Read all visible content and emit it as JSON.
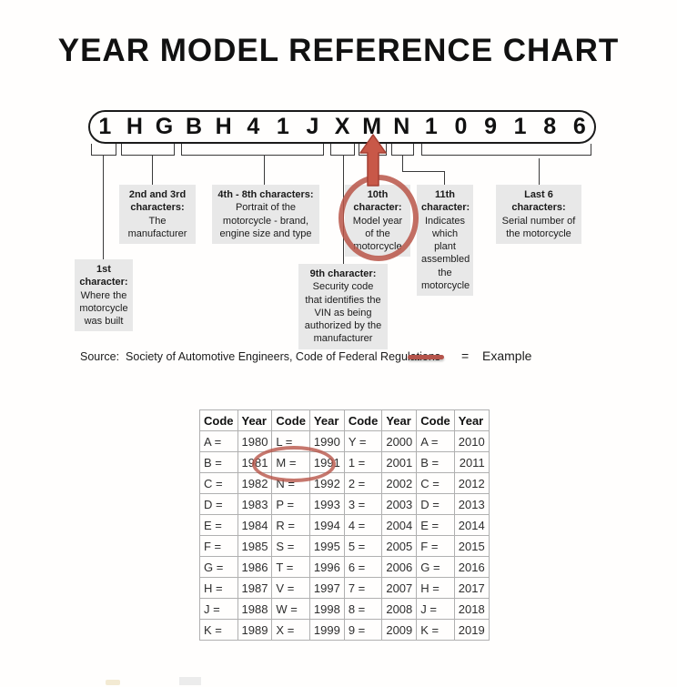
{
  "title": "YEAR MODEL REFERENCE CHART",
  "vin": {
    "characters": [
      "1",
      "H",
      "G",
      "B",
      "H",
      "4",
      "1",
      "J",
      "X",
      "M",
      "N",
      "1",
      "0",
      "9",
      "1",
      "8",
      "6"
    ]
  },
  "callouts": [
    {
      "id": "char-1",
      "heading": "1st character:",
      "body": "Where the motorcycle was built"
    },
    {
      "id": "char-2-3",
      "heading": "2nd and 3rd characters:",
      "body": "The manufacturer"
    },
    {
      "id": "char-4-8",
      "heading": "4th - 8th characters:",
      "body": "Portrait of the motorcycle - brand, engine size and type"
    },
    {
      "id": "char-9",
      "heading": "9th character:",
      "body": "Security code that identifies the VIN as being authorized by the manufacturer"
    },
    {
      "id": "char-10",
      "heading": "10th character:",
      "body": "Model year of the motorcycle"
    },
    {
      "id": "char-11",
      "heading": "11th character:",
      "body": "Indicates which plant assembled the motorcycle"
    },
    {
      "id": "last-6",
      "heading": "Last 6 characters:",
      "body": "Serial number of the motorcycle"
    }
  ],
  "legend": {
    "source_text": "Source:  Society of Automotive Engineers, Code of Federal Regulations",
    "equals_sign": "=",
    "example_label": "Example"
  },
  "colors": {
    "accent_red": "#b8554a",
    "arrow_red": "#c85848",
    "callout_bg": "#e8e8e8"
  },
  "table": {
    "headers": [
      "Code",
      "Year",
      "Code",
      "Year",
      "Code",
      "Year",
      "Code",
      "Year"
    ],
    "rows": [
      [
        "A =",
        "1980",
        "L =",
        "1990",
        "Y =",
        "2000",
        "A =",
        "2010"
      ],
      [
        "B =",
        "1981",
        "M =",
        "1991",
        "1 =",
        "2001",
        "B =",
        "2011"
      ],
      [
        "C =",
        "1982",
        "N =",
        "1992",
        "2 =",
        "2002",
        "C =",
        "2012"
      ],
      [
        "D =",
        "1983",
        "P =",
        "1993",
        "3 =",
        "2003",
        "D =",
        "2013"
      ],
      [
        "E =",
        "1984",
        "R =",
        "1994",
        "4 =",
        "2004",
        "E =",
        "2014"
      ],
      [
        "F =",
        "1985",
        "S =",
        "1995",
        "5 =",
        "2005",
        "F =",
        "2015"
      ],
      [
        "G =",
        "1986",
        "T =",
        "1996",
        "6 =",
        "2006",
        "G =",
        "2016"
      ],
      [
        "H =",
        "1987",
        "V =",
        "1997",
        "7 =",
        "2007",
        "H =",
        "2017"
      ],
      [
        "J =",
        "1988",
        "W =",
        "1998",
        "8 =",
        "2008",
        "J =",
        "2018"
      ],
      [
        "K =",
        "1989",
        "X =",
        "1999",
        "9 =",
        "2009",
        "K =",
        "2019"
      ]
    ],
    "highlighted_cells": "M = 1991"
  }
}
